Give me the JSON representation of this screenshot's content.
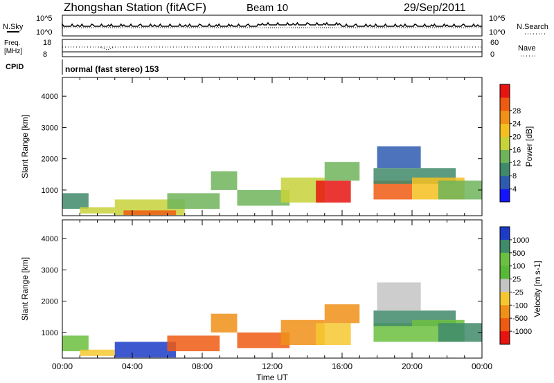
{
  "header": {
    "title": "Zhongshan Station (fitACF)",
    "beam": "Beam 10",
    "date": "29/Sep/2011"
  },
  "panels": {
    "nsky": {
      "label": "N.Sky",
      "ticks_left": [
        "10^5",
        "10^0"
      ],
      "right_label": "N.Search",
      "ticks_right": [
        "10^5",
        "10^0"
      ]
    },
    "freq": {
      "label_line1": "Freq.",
      "label_line2": "[MHz]",
      "ticks_left": [
        "18",
        "8"
      ],
      "right_label": "Nave",
      "ticks_right": [
        "60",
        "0"
      ]
    },
    "cpid": {
      "label": "CPID",
      "text": "normal (fast stereo) 153"
    }
  },
  "chart_data": [
    {
      "type": "heatmap",
      "panel": "power",
      "ylabel": "Slant Range [km]",
      "y_ticks": [
        1000,
        2000,
        3000,
        4000
      ],
      "ylim": [
        180,
        4600
      ],
      "xlim": [
        0,
        24
      ],
      "colorbar": {
        "label": "Power [dB]",
        "ticks": [
          "4",
          "8",
          "12",
          "16",
          "20",
          "24",
          "28"
        ],
        "colors": [
          "#1414ff",
          "#2e5ab0",
          "#3f8a6a",
          "#6fb45a",
          "#c8d23a",
          "#f4c020",
          "#f09018",
          "#ee5a12",
          "#e81410"
        ]
      },
      "regions": [
        {
          "x": [
            0.0,
            1.5
          ],
          "y": [
            400,
            900
          ],
          "level": 2
        },
        {
          "x": [
            1.0,
            3.0
          ],
          "y": [
            250,
            450
          ],
          "level": 4
        },
        {
          "x": [
            3.0,
            7.0
          ],
          "y": [
            200,
            700
          ],
          "level": 4
        },
        {
          "x": [
            3.5,
            6.5
          ],
          "y": [
            200,
            350
          ],
          "level": 7
        },
        {
          "x": [
            6.0,
            9.0
          ],
          "y": [
            400,
            900
          ],
          "level": 3
        },
        {
          "x": [
            8.5,
            10.0
          ],
          "y": [
            1000,
            1600
          ],
          "level": 3
        },
        {
          "x": [
            10.0,
            13.0
          ],
          "y": [
            500,
            1000
          ],
          "level": 3
        },
        {
          "x": [
            12.5,
            15.0
          ],
          "y": [
            600,
            1400
          ],
          "level": 4
        },
        {
          "x": [
            14.5,
            16.5
          ],
          "y": [
            600,
            1300
          ],
          "level": 8
        },
        {
          "x": [
            15.0,
            17.0
          ],
          "y": [
            1300,
            1900
          ],
          "level": 3
        },
        {
          "x": [
            17.8,
            20.0
          ],
          "y": [
            700,
            1300
          ],
          "level": 7
        },
        {
          "x": [
            17.8,
            22.5
          ],
          "y": [
            1200,
            1700
          ],
          "level": 2
        },
        {
          "x": [
            20.0,
            23.0
          ],
          "y": [
            700,
            1400
          ],
          "level": 5
        },
        {
          "x": [
            18.0,
            20.5
          ],
          "y": [
            1700,
            2400
          ],
          "level": 1
        },
        {
          "x": [
            21.5,
            24.0
          ],
          "y": [
            700,
            1300
          ],
          "level": 3
        }
      ]
    },
    {
      "type": "heatmap",
      "panel": "velocity",
      "ylabel": "Slant Range [km]",
      "xlabel": "Time UT",
      "x_ticks": [
        "00:00",
        "04:00",
        "08:00",
        "12:00",
        "16:00",
        "20:00",
        "00:00"
      ],
      "y_ticks": [
        1000,
        2000,
        3000,
        4000
      ],
      "ylim": [
        180,
        4600
      ],
      "xlim": [
        0,
        24
      ],
      "colorbar": {
        "label": "Velocity [m s-1]",
        "ticks": [
          "1000",
          "500",
          "100",
          "25",
          "-25",
          "-100",
          "-500",
          "-1000"
        ],
        "colors": [
          "#1c3cc8",
          "#3f8a6a",
          "#6cc040",
          "#58b838",
          "#c4c4c4",
          "#f6c830",
          "#f09018",
          "#ee5a12",
          "#e81410"
        ]
      },
      "regions": [
        {
          "x": [
            0.0,
            1.5
          ],
          "y": [
            400,
            900
          ],
          "level": 2
        },
        {
          "x": [
            1.0,
            3.0
          ],
          "y": [
            250,
            450
          ],
          "level": 5
        },
        {
          "x": [
            3.0,
            6.5
          ],
          "y": [
            200,
            700
          ],
          "level": 0
        },
        {
          "x": [
            6.0,
            9.0
          ],
          "y": [
            400,
            900
          ],
          "level": 7
        },
        {
          "x": [
            8.5,
            10.0
          ],
          "y": [
            1000,
            1600
          ],
          "level": 6
        },
        {
          "x": [
            10.0,
            13.0
          ],
          "y": [
            500,
            1000
          ],
          "level": 7
        },
        {
          "x": [
            12.5,
            15.0
          ],
          "y": [
            600,
            1400
          ],
          "level": 6
        },
        {
          "x": [
            14.5,
            16.5
          ],
          "y": [
            600,
            1300
          ],
          "level": 5
        },
        {
          "x": [
            15.0,
            17.0
          ],
          "y": [
            1300,
            1900
          ],
          "level": 6
        },
        {
          "x": [
            17.8,
            20.0
          ],
          "y": [
            700,
            1300
          ],
          "level": 2
        },
        {
          "x": [
            17.8,
            22.5
          ],
          "y": [
            1200,
            1700
          ],
          "level": 1
        },
        {
          "x": [
            20.0,
            23.0
          ],
          "y": [
            700,
            1400
          ],
          "level": 2
        },
        {
          "x": [
            18.0,
            20.5
          ],
          "y": [
            1700,
            2600
          ],
          "level": 4
        },
        {
          "x": [
            21.5,
            24.0
          ],
          "y": [
            700,
            1300
          ],
          "level": 1
        }
      ]
    }
  ]
}
